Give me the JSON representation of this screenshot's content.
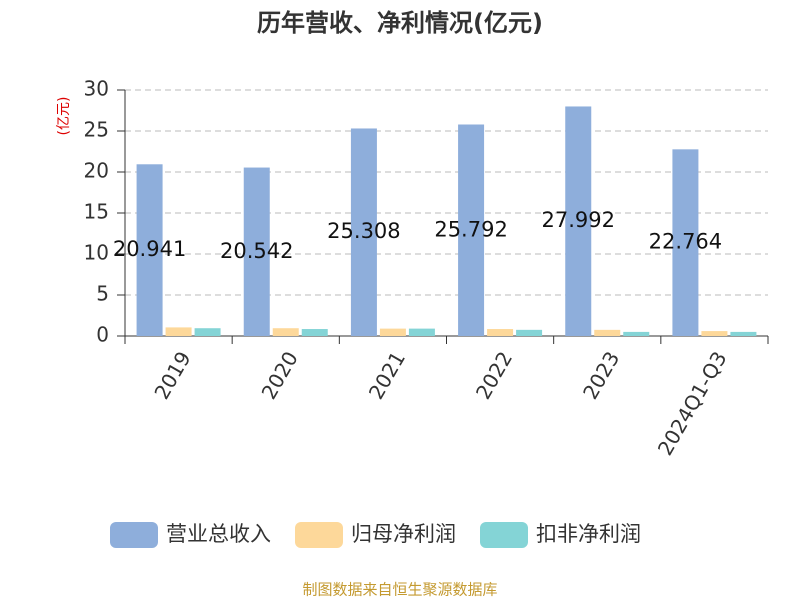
{
  "chart_data": {
    "type": "bar",
    "title": "历年营收、净利情况(亿元)",
    "y_label": "(亿元)",
    "categories": [
      "2019",
      "2020",
      "2021",
      "2022",
      "2023",
      "2024Q1-Q3"
    ],
    "series": [
      {
        "name": "营业总收入",
        "color": "#8eaedb",
        "values": [
          20.941,
          20.542,
          25.308,
          25.792,
          27.992,
          22.764
        ]
      },
      {
        "name": "归母净利润",
        "color": "#fdd89a",
        "values": [
          1.05,
          0.95,
          0.9,
          0.85,
          0.75,
          0.6
        ]
      },
      {
        "name": "扣非净利润",
        "color": "#84d4d6",
        "values": [
          0.95,
          0.85,
          0.9,
          0.75,
          0.5,
          0.5
        ]
      }
    ],
    "ylim": [
      0,
      30
    ],
    "yticks": [
      0,
      5,
      10,
      15,
      20,
      25,
      30
    ],
    "grid": true,
    "source": "制图数据来自恒生聚源数据库"
  }
}
